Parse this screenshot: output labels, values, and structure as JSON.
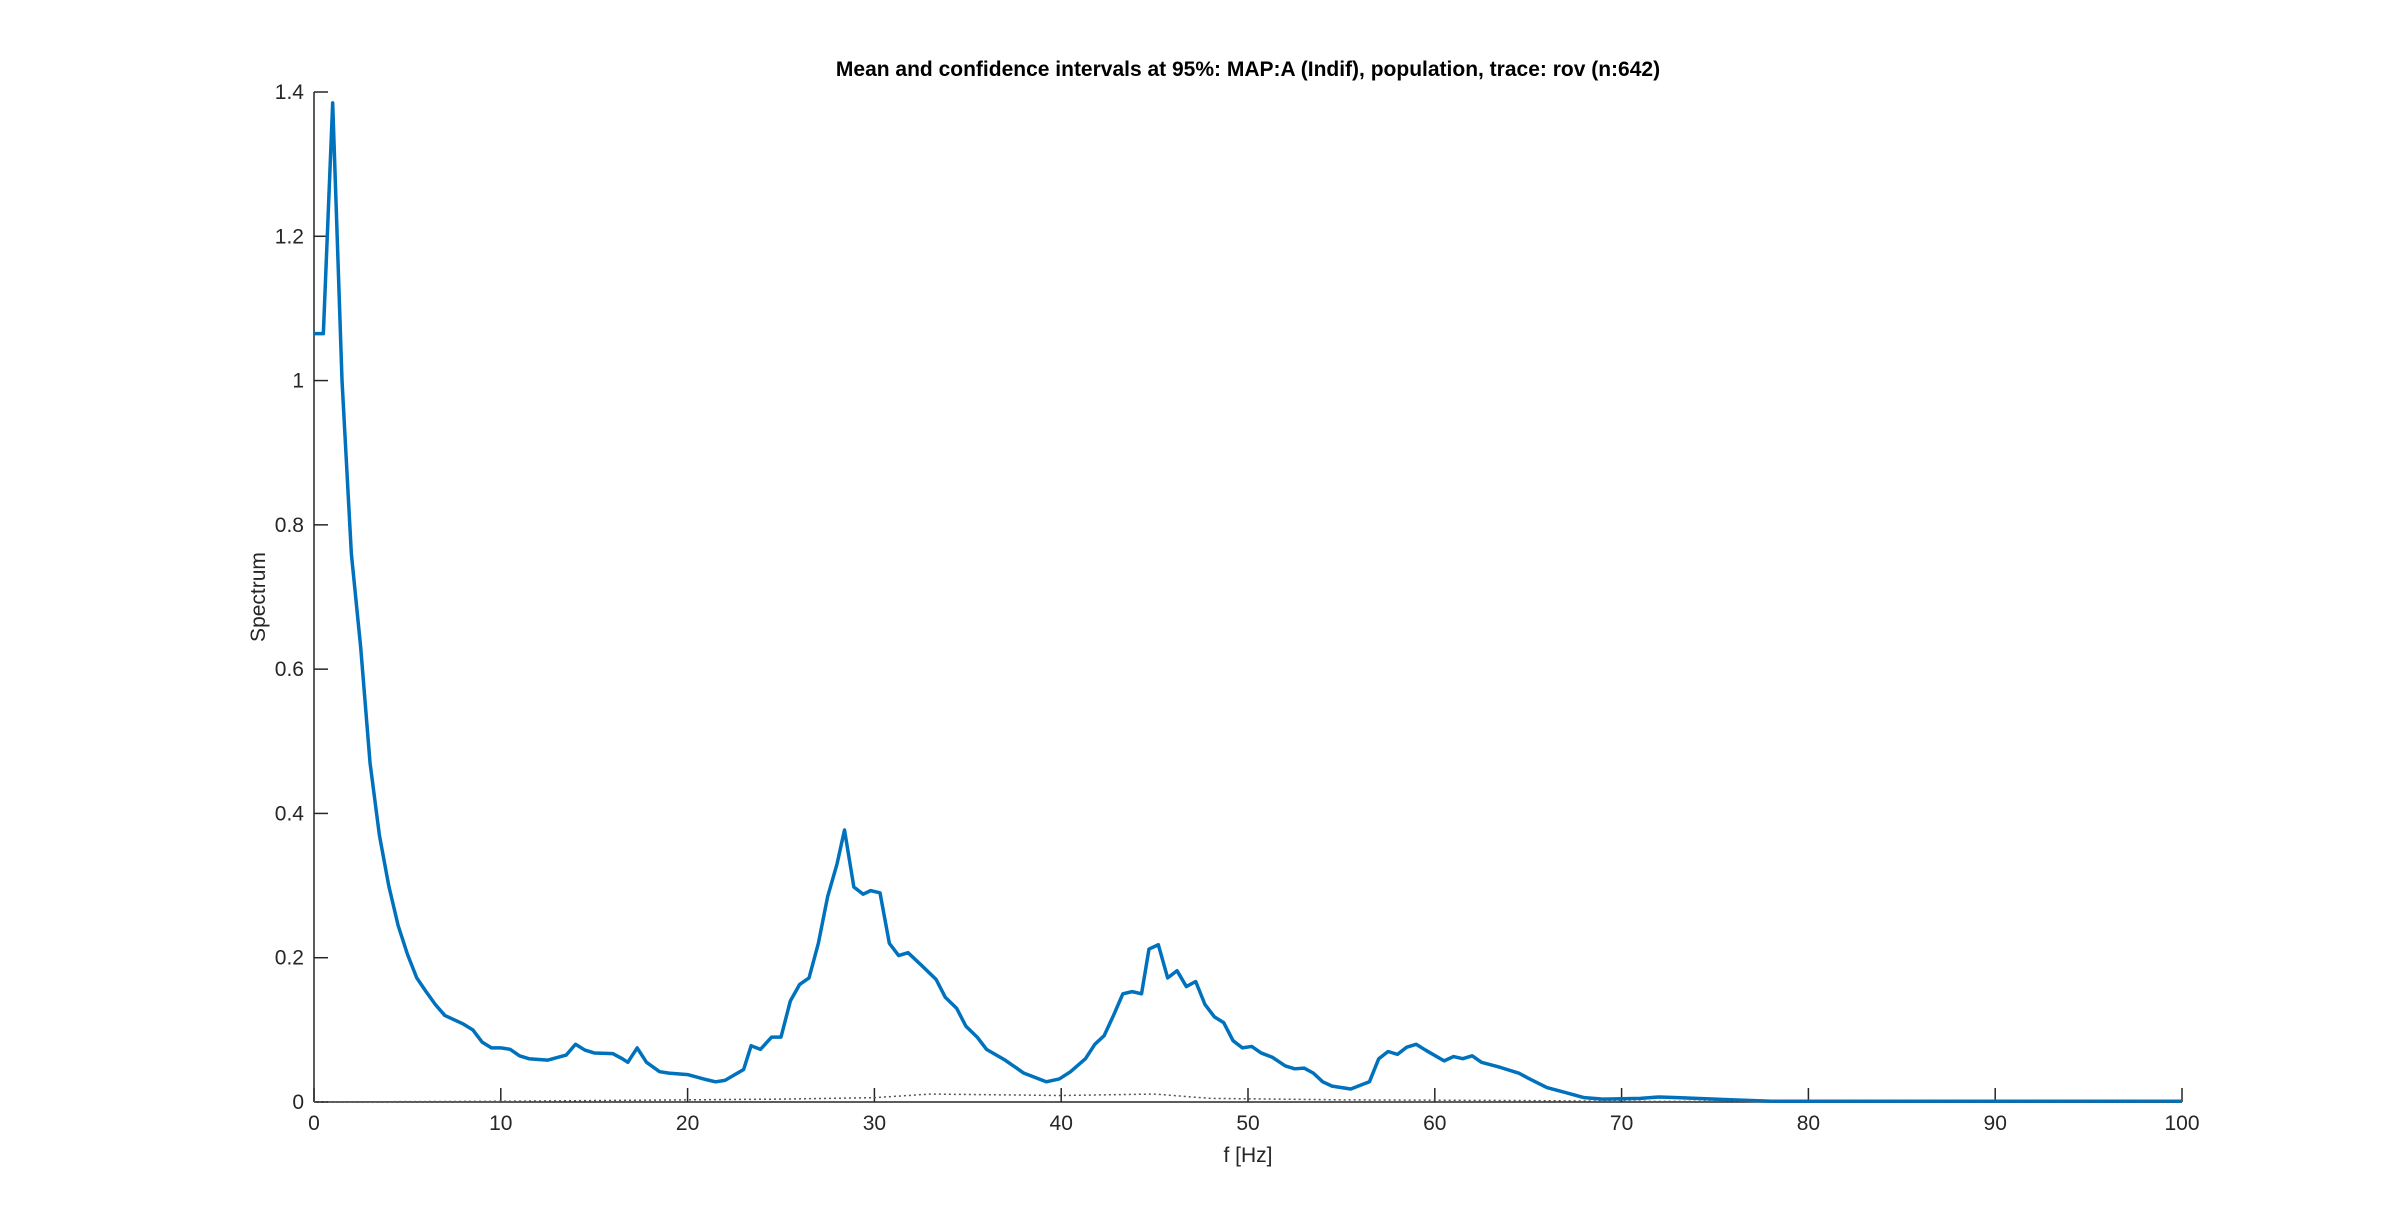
{
  "chart_data": {
    "type": "line",
    "title": "Mean and confidence intervals at 95%: MAP:A (Indif), population, trace: rov (n:642)",
    "x_label": "f [Hz]",
    "y_label": "Spectrum",
    "xlim": [
      0,
      100
    ],
    "xticks": [
      0,
      10,
      20,
      30,
      40,
      50,
      60,
      70,
      80,
      90,
      100
    ],
    "ylim": [
      0,
      1.4
    ],
    "yticks": [
      0,
      0.2,
      0.4,
      0.6,
      0.8,
      1,
      1.2,
      1.4
    ],
    "series": [
      {
        "color": "#0072bd",
        "style": "solid",
        "x": [
          0,
          0.5,
          1,
          1.5,
          2,
          2.5,
          3,
          3.5,
          4,
          4.5,
          5,
          5.5,
          6,
          6.5,
          7,
          8,
          8.5,
          9,
          9.5,
          10,
          10.5,
          11,
          11.5,
          12.5,
          13.5,
          14,
          14.5,
          15,
          16,
          16.5,
          16.8,
          17.3,
          17.8,
          18.5,
          19,
          20,
          21,
          21.5,
          22,
          23,
          23.4,
          23.9,
          24.5,
          25,
          25.5,
          26,
          26.5,
          27,
          27.5,
          28,
          28.4,
          28.9,
          29.4,
          29.8,
          30.3,
          30.8,
          31.3,
          31.8,
          32.5,
          33.3,
          33.8,
          34.4,
          34.9,
          35.5,
          36,
          37,
          38,
          39.2,
          39.9,
          40.5,
          41.3,
          41.8,
          42.3,
          42.8,
          43.3,
          43.8,
          44.3,
          44.7,
          45.2,
          45.7,
          46.2,
          46.7,
          47.2,
          47.7,
          48.2,
          48.7,
          49.2,
          49.7,
          50.2,
          50.7,
          51.3,
          52,
          52.5,
          53,
          53.5,
          54,
          54.5,
          55.5,
          56.5,
          57,
          57.5,
          58,
          58.5,
          59,
          59.5,
          60.5,
          61,
          61.5,
          62,
          62.5,
          63.5,
          64.5,
          65,
          66,
          67,
          68,
          69,
          71,
          72,
          73,
          74,
          75,
          76,
          78,
          80,
          100
        ],
        "values": [
          1.065,
          1.065,
          1.385,
          1.0,
          0.76,
          0.63,
          0.47,
          0.37,
          0.3,
          0.245,
          0.205,
          0.172,
          0.153,
          0.135,
          0.12,
          0.108,
          0.1,
          0.083,
          0.075,
          0.075,
          0.073,
          0.064,
          0.06,
          0.058,
          0.065,
          0.08,
          0.072,
          0.068,
          0.067,
          0.06,
          0.055,
          0.075,
          0.055,
          0.042,
          0.04,
          0.038,
          0.031,
          0.028,
          0.03,
          0.045,
          0.078,
          0.073,
          0.09,
          0.09,
          0.14,
          0.163,
          0.172,
          0.22,
          0.285,
          0.33,
          0.377,
          0.298,
          0.288,
          0.293,
          0.29,
          0.22,
          0.203,
          0.207,
          0.19,
          0.17,
          0.145,
          0.13,
          0.105,
          0.09,
          0.073,
          0.058,
          0.04,
          0.028,
          0.032,
          0.042,
          0.06,
          0.08,
          0.092,
          0.12,
          0.15,
          0.153,
          0.15,
          0.212,
          0.218,
          0.172,
          0.182,
          0.16,
          0.167,
          0.135,
          0.118,
          0.11,
          0.085,
          0.075,
          0.077,
          0.068,
          0.062,
          0.05,
          0.046,
          0.047,
          0.04,
          0.028,
          0.022,
          0.018,
          0.028,
          0.06,
          0.07,
          0.066,
          0.076,
          0.08,
          0.072,
          0.057,
          0.063,
          0.06,
          0.064,
          0.055,
          0.048,
          0.04,
          0.033,
          0.02,
          0.013,
          0.006,
          0.004,
          0.005,
          0.007,
          0.006,
          0.005,
          0.004,
          0.003,
          0.001,
          0.001,
          0.001
        ]
      },
      {
        "color": "#555555",
        "style": "dotted",
        "x": [
          0,
          10,
          20,
          25,
          30,
          33,
          40,
          45,
          48,
          55,
          65,
          70,
          100
        ],
        "values": [
          0,
          0.001,
          0.003,
          0.004,
          0.006,
          0.011,
          0.009,
          0.011,
          0.005,
          0.003,
          0.002,
          0.001,
          0
        ]
      }
    ]
  }
}
